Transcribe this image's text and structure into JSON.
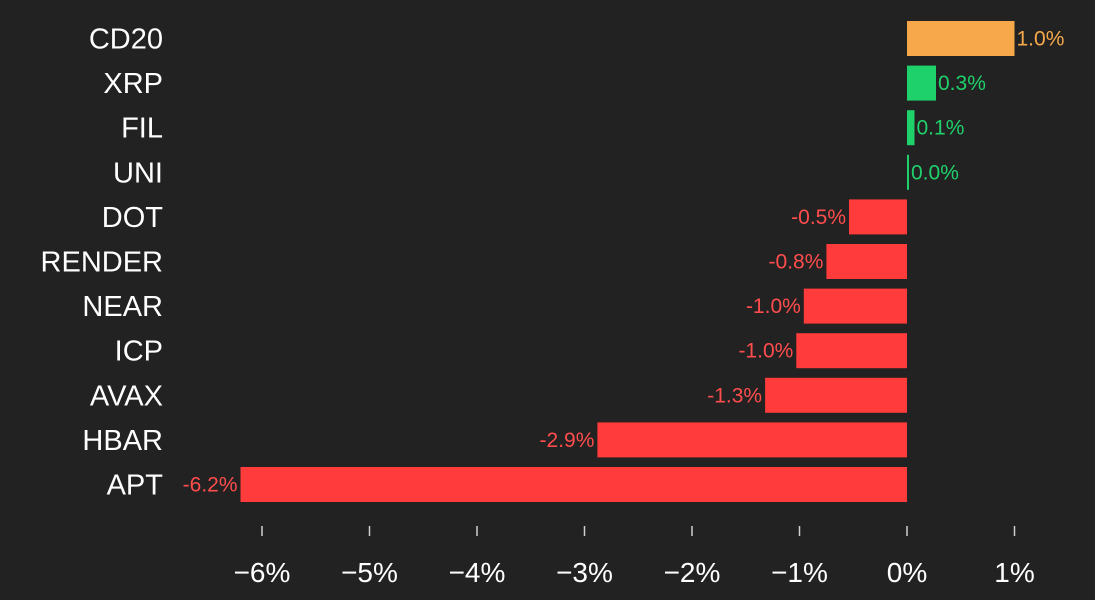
{
  "chart_data": {
    "type": "bar",
    "orientation": "horizontal",
    "categories": [
      "CD20",
      "XRP",
      "FIL",
      "UNI",
      "DOT",
      "RENDER",
      "NEAR",
      "ICP",
      "AVAX",
      "HBAR",
      "APT"
    ],
    "values": [
      1.0,
      0.27,
      0.07,
      0.0,
      -0.54,
      -0.75,
      -0.96,
      -1.03,
      -1.32,
      -2.88,
      -6.2
    ],
    "value_labels": [
      "1.0%",
      "0.3%",
      "0.1%",
      "0.0%",
      "-0.5%",
      "-0.8%",
      "-1.0%",
      "-1.0%",
      "-1.3%",
      "-2.9%",
      "-6.2%"
    ],
    "xlim": [
      -6.2,
      1.0
    ],
    "x_ticks": [
      -6,
      -5,
      -4,
      -3,
      -2,
      -1,
      0,
      1
    ],
    "x_tick_labels": [
      "−6%",
      "−5%",
      "−4%",
      "−3%",
      "−2%",
      "−1%",
      "0%",
      "1%"
    ],
    "grid": false,
    "legend": "none",
    "colors": {
      "background": "#222222",
      "index": "#f6a84a",
      "positive": "#1fd16b",
      "negative": "#ff3b3b",
      "negative_label": "#ff4d4d",
      "index_label": "#f6a84a",
      "positive_label": "#1fd16b",
      "text": "#ffffff",
      "tick": "#cfcfcf"
    },
    "highlight_category": "CD20"
  }
}
